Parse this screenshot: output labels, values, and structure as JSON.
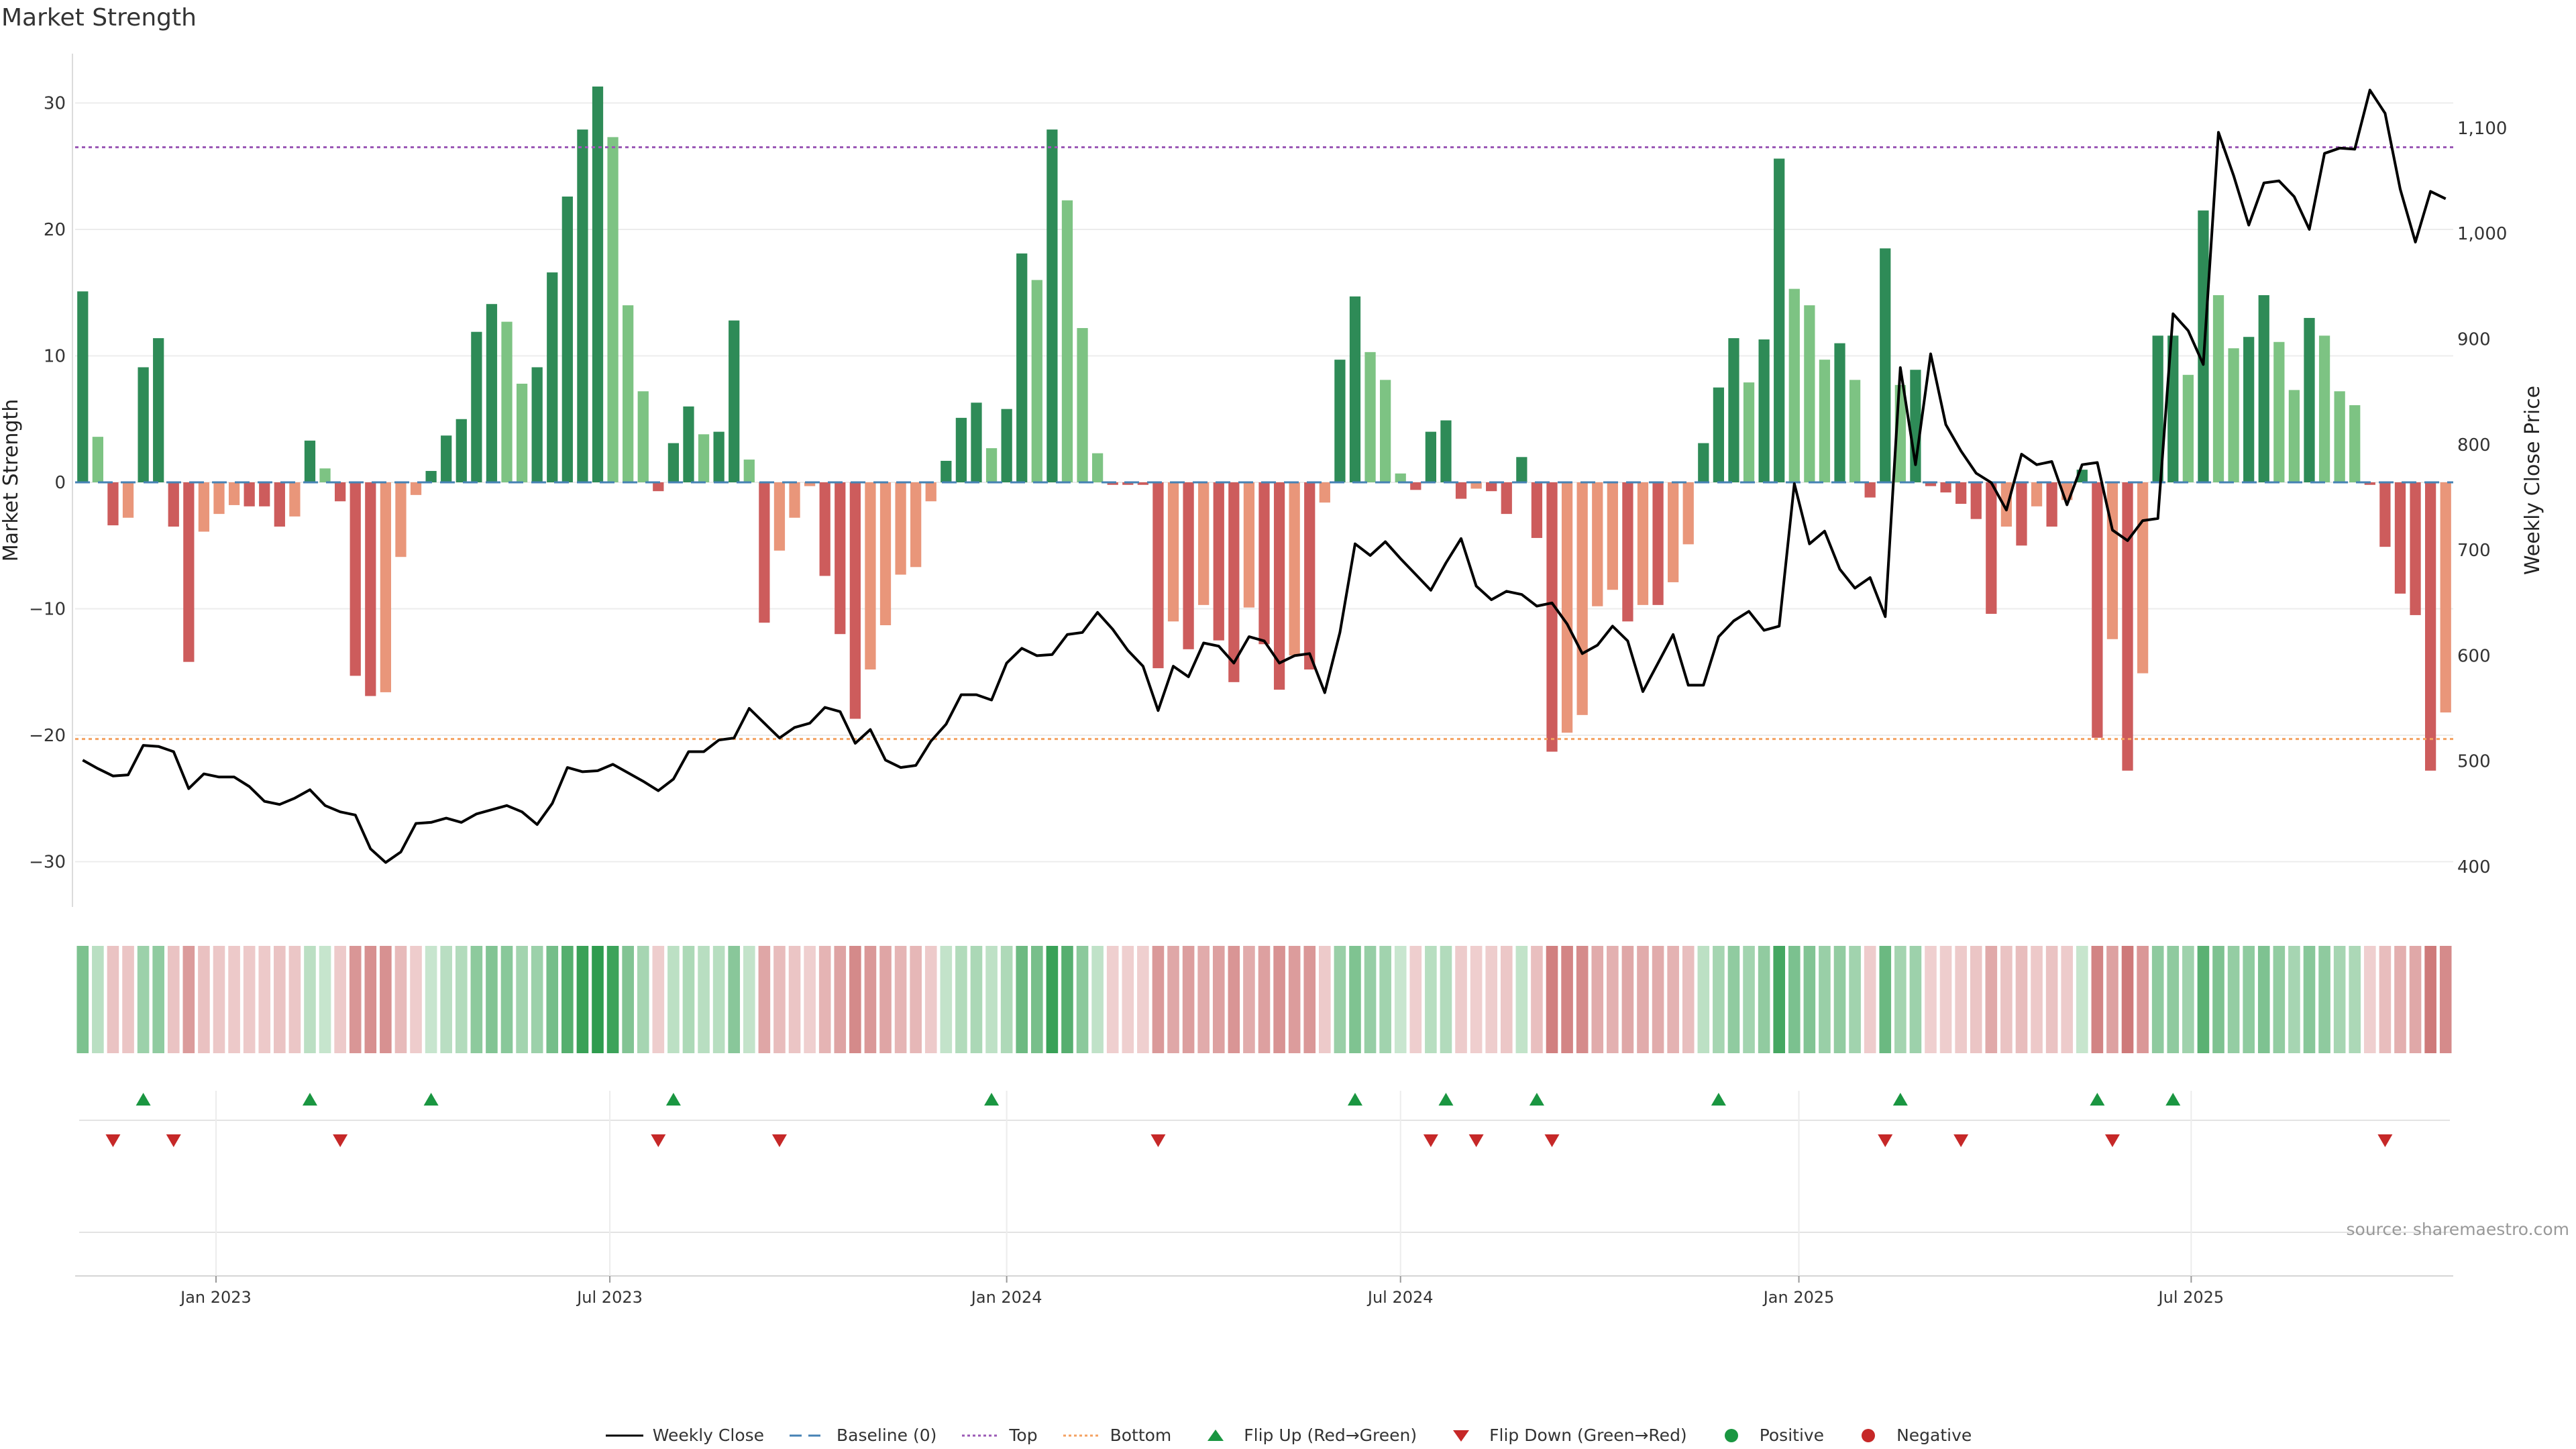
{
  "title": "Market Strength",
  "source": "source: sharemaestro.com",
  "colors": {
    "strong_pos": "#2e8b57",
    "weak_pos": "#7dc383",
    "strong_neg": "#cd5c5c",
    "weak_neg": "#e9967a",
    "close_line": "#000000",
    "baseline": "#4682b4",
    "top": "#9b59b6",
    "bottom": "#f4a261",
    "flip_up": "#1a9641",
    "flip_down": "#c62828"
  },
  "legend": [
    {
      "key": "close",
      "label": "Weekly Close"
    },
    {
      "key": "baseline",
      "label": "Baseline (0)"
    },
    {
      "key": "top",
      "label": "Top"
    },
    {
      "key": "bottom",
      "label": "Bottom"
    },
    {
      "key": "flip_up",
      "label": "Flip Up (Red→Green)"
    },
    {
      "key": "flip_down",
      "label": "Flip Down (Green→Red)"
    },
    {
      "key": "positive",
      "label": "Positive"
    },
    {
      "key": "negative",
      "label": "Negative"
    }
  ],
  "chart_data": {
    "type": "bar",
    "title": "Market Strength",
    "ylabel": "Market Strength",
    "y2label": "Weekly Close Price",
    "ylim": [
      -34,
      34
    ],
    "y2lim": [
      362,
      1173
    ],
    "yticks": [
      30,
      20,
      10,
      0,
      -10,
      -20,
      -30
    ],
    "ytick_labels": [
      "30",
      "20",
      "10",
      "0",
      "−10",
      "−20",
      "−30"
    ],
    "y2ticks": [
      1100,
      1000,
      900,
      800,
      700,
      600,
      500,
      400
    ],
    "y2tick_labels": [
      "1,100",
      "1,000",
      "900",
      "800",
      "700",
      "600",
      "500",
      "400"
    ],
    "x_index_range": [
      0,
      157
    ],
    "xticks": [
      {
        "label": "Jan 2023",
        "index": 9.3
      },
      {
        "label": "Jul 2023",
        "index": 35.3
      },
      {
        "label": "Jan 2024",
        "index": 61.5
      },
      {
        "label": "Jul 2024",
        "index": 87.5
      },
      {
        "label": "Jan 2025",
        "index": 113.8
      },
      {
        "label": "Jul 2025",
        "index": 139.7
      }
    ],
    "top_line": 26.5,
    "bottom_line": -20.3,
    "baseline": 0,
    "strength": [
      15.1,
      3.6,
      -3.4,
      -2.8,
      9.1,
      11.4,
      -3.5,
      -14.2,
      -3.9,
      -2.5,
      -1.8,
      -1.9,
      -1.9,
      -3.5,
      -2.7,
      3.3,
      1.1,
      -1.5,
      -15.3,
      -16.9,
      -16.6,
      -5.9,
      -1.0,
      0.9,
      3.7,
      5.0,
      11.9,
      14.1,
      12.7,
      7.8,
      9.1,
      16.6,
      22.6,
      27.9,
      31.3,
      27.3,
      14.0,
      7.2,
      -0.7,
      3.1,
      6.0,
      3.8,
      4.0,
      12.8,
      1.8,
      -11.1,
      -5.4,
      -2.8,
      -0.3,
      -7.4,
      -12.0,
      -18.7,
      -14.8,
      -11.3,
      -7.3,
      -6.7,
      -1.5,
      1.7,
      5.1,
      6.3,
      2.7,
      5.8,
      18.1,
      16.0,
      27.9,
      22.3,
      12.2,
      2.3,
      -0.2,
      -0.2,
      -0.2,
      -14.7,
      -11.0,
      -13.2,
      -9.7,
      -12.5,
      -15.8,
      -9.9,
      -12.8,
      -16.4,
      -13.7,
      -14.8,
      -1.6,
      9.7,
      14.7,
      10.3,
      8.1,
      0.7,
      -0.6,
      4.0,
      4.9,
      -1.3,
      -0.5,
      -0.7,
      -2.5,
      2.0,
      -4.4,
      -21.3,
      -19.8,
      -18.4,
      -9.8,
      -8.5,
      -11.0,
      -9.7,
      -9.7,
      -7.9,
      -4.9,
      3.1,
      7.5,
      11.4,
      7.9,
      11.3,
      25.6,
      15.3,
      14.0,
      9.7,
      11.0,
      8.1,
      -1.2,
      18.5,
      7.7,
      8.9,
      -0.3,
      -0.8,
      -1.7,
      -2.9,
      -10.4,
      -3.5,
      -5.0,
      -1.9,
      -3.5,
      -1.4,
      1.0,
      -20.2,
      -12.4,
      -22.8,
      -15.1,
      11.6,
      11.6,
      8.5,
      21.5,
      14.8,
      10.6,
      11.5,
      14.8,
      11.1,
      7.3,
      13.0,
      11.6,
      7.2,
      6.1,
      -0.2,
      -5.1,
      -8.8,
      -10.5,
      -22.8,
      -18.2
    ],
    "close": [
      501,
      493,
      486,
      487,
      515,
      514,
      509,
      474,
      488,
      485,
      485,
      476,
      462,
      459,
      465,
      473,
      458,
      452,
      449,
      417,
      404,
      414,
      441,
      442,
      446,
      442,
      450,
      454,
      458,
      452,
      440,
      460,
      494,
      490,
      491,
      497,
      489,
      481,
      472,
      483,
      509,
      509,
      520,
      522,
      550,
      536,
      522,
      532,
      536,
      551,
      547,
      517,
      530,
      501,
      494,
      496,
      519,
      535,
      563,
      563,
      558,
      593,
      607,
      600,
      601,
      620,
      622,
      641,
      625,
      605,
      590,
      548,
      590,
      580,
      612,
      609,
      593,
      618,
      614,
      593,
      600,
      602,
      565,
      622,
      706,
      695,
      708,
      692,
      677,
      662,
      688,
      711,
      666,
      653,
      661,
      658,
      647,
      650,
      630,
      602,
      610,
      628,
      614,
      566,
      593,
      620,
      572,
      572,
      618,
      633,
      642,
      624,
      628,
      763,
      706,
      718,
      682,
      664,
      674,
      637,
      873,
      781,
      886,
      819,
      794,
      773,
      764,
      738,
      791,
      781,
      784,
      743,
      781,
      783,
      719,
      709,
      728,
      730,
      924,
      908,
      876,
      1096,
      1055,
      1008,
      1048,
      1050,
      1035,
      1004,
      1076,
      1081,
      1080,
      1136,
      1114,
      1042,
      992,
      1040,
      1033
    ],
    "flip_up_index": [
      4,
      15,
      23,
      39,
      60,
      84,
      90,
      96,
      108,
      120,
      133,
      138
    ],
    "flip_down_index": [
      2,
      6,
      17,
      38,
      46,
      71,
      89,
      92,
      97,
      119,
      124,
      134,
      152
    ]
  }
}
